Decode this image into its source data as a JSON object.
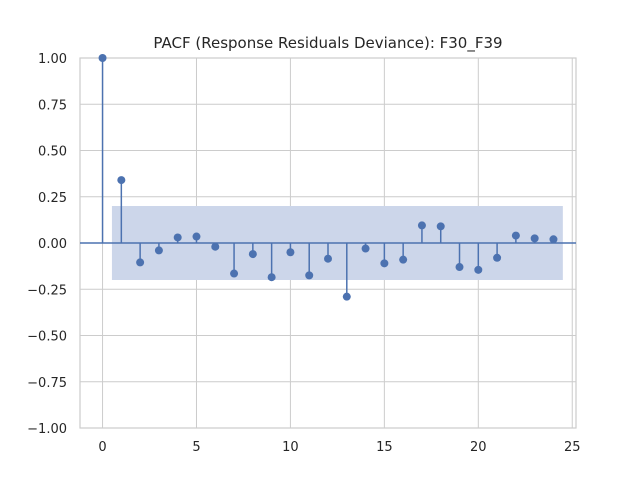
{
  "chart_data": {
    "type": "stem",
    "title": "PACF (Response Residuals Deviance): F30_F39",
    "xlabel": "",
    "ylabel": "",
    "xlim": [
      -1.2,
      25.2
    ],
    "ylim": [
      -1.0,
      1.0
    ],
    "x_ticks": [
      0,
      5,
      10,
      15,
      20,
      25
    ],
    "y_ticks": [
      -1.0,
      -0.75,
      -0.5,
      -0.25,
      0.0,
      0.25,
      0.5,
      0.75,
      1.0
    ],
    "x_tick_labels": [
      "0",
      "5",
      "10",
      "15",
      "20",
      "25"
    ],
    "y_tick_labels": [
      "−1.00",
      "−0.75",
      "−0.50",
      "−0.25",
      "0.00",
      "0.25",
      "0.50",
      "0.75",
      "1.00"
    ],
    "grid": true,
    "confidence_band": {
      "x_start": 0.5,
      "x_end": 24.5,
      "lower": -0.2,
      "upper": 0.2,
      "color": "#ccd6ea"
    },
    "colors": {
      "marker": "#4c72b0",
      "grid": "#cccccc",
      "spine": "#cccccc"
    },
    "lags": [
      0,
      1,
      2,
      3,
      4,
      5,
      6,
      7,
      8,
      9,
      10,
      11,
      12,
      13,
      14,
      15,
      16,
      17,
      18,
      19,
      20,
      21,
      22,
      23,
      24
    ],
    "values": [
      1.0,
      0.34,
      -0.105,
      -0.04,
      0.03,
      0.035,
      -0.02,
      -0.165,
      -0.06,
      -0.185,
      -0.05,
      -0.175,
      -0.085,
      -0.29,
      -0.03,
      -0.11,
      -0.09,
      0.095,
      0.09,
      -0.13,
      -0.145,
      -0.08,
      0.04,
      0.025,
      0.02
    ]
  }
}
